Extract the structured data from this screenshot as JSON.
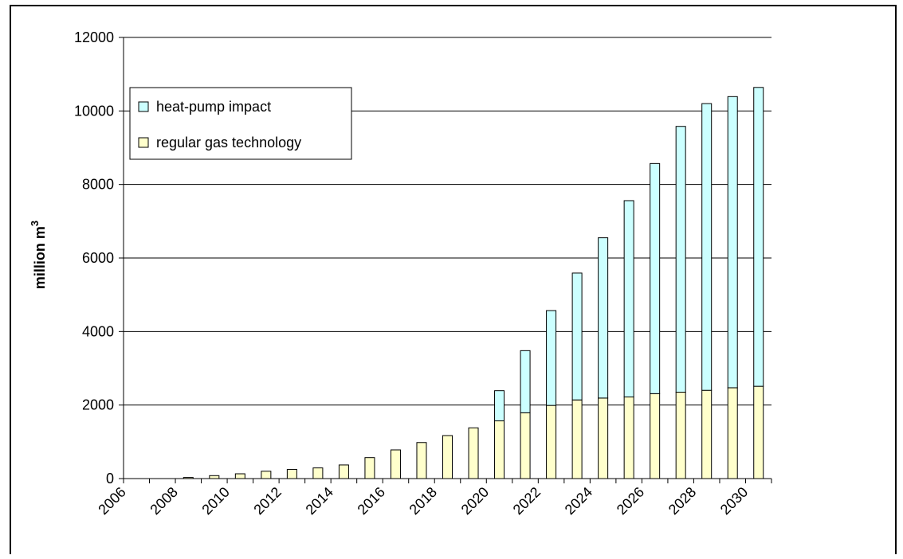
{
  "chart_data": {
    "type": "bar",
    "stacked": true,
    "title": "",
    "xlabel": "",
    "ylabel": "million m",
    "ylabel_superscript": "3",
    "ylim": [
      0,
      12000
    ],
    "yticks": [
      0,
      2000,
      4000,
      6000,
      8000,
      10000,
      12000
    ],
    "grid": true,
    "legend_position": "top-left",
    "categories": [
      2006,
      2007,
      2008,
      2009,
      2010,
      2011,
      2012,
      2013,
      2014,
      2015,
      2016,
      2017,
      2018,
      2019,
      2020,
      2021,
      2022,
      2023,
      2024,
      2025,
      2026,
      2027,
      2028,
      2029,
      2030
    ],
    "x_tick_labels": [
      "2006",
      "2008",
      "2010",
      "2012",
      "2014",
      "2016",
      "2018",
      "2020",
      "2022",
      "2024",
      "2026",
      "2028",
      "2030"
    ],
    "series": [
      {
        "name": "regular gas technology",
        "color": "#ffffcc",
        "values": [
          0,
          0,
          30,
          80,
          130,
          200,
          250,
          290,
          370,
          570,
          780,
          980,
          1170,
          1380,
          1570,
          1790,
          1990,
          2140,
          2190,
          2220,
          2310,
          2350,
          2400,
          2470,
          2510
        ]
      },
      {
        "name": "heat-pump impact",
        "color": "#ccffff",
        "values": [
          0,
          0,
          0,
          0,
          0,
          0,
          0,
          0,
          0,
          0,
          0,
          0,
          0,
          0,
          820,
          1690,
          2580,
          3450,
          4360,
          5340,
          6260,
          7230,
          7800,
          7920,
          8130
        ]
      }
    ]
  }
}
